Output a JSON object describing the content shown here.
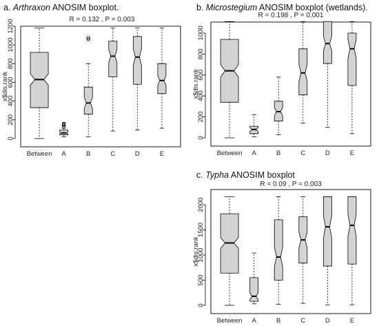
{
  "chart_data": [
    {
      "type": "boxplot",
      "panel_label": "a.",
      "title_italic": "Arthraxon",
      "title_rest": " ANOSIM boxplot.",
      "stat_text": "R = 0.132 ,  P = 0.003",
      "ylabel": "x$dis.rank",
      "ylim": [
        0,
        1240
      ],
      "yticks": [
        0,
        200,
        400,
        600,
        800,
        1000,
        1200
      ],
      "categories": [
        "Between",
        "A",
        "B",
        "C",
        "D",
        "E"
      ],
      "boxes": [
        {
          "name": "Between",
          "min": 0,
          "q1": 330,
          "med": 630,
          "q3": 920,
          "max": 1180,
          "notch": [
            570,
            690
          ],
          "outliers": [],
          "wide": true
        },
        {
          "name": "A",
          "min": 20,
          "q1": 40,
          "med": 60,
          "q3": 90,
          "max": 110,
          "notch": [
            50,
            70
          ],
          "outliers": [
            130,
            145,
            150,
            160
          ]
        },
        {
          "name": "B",
          "min": 20,
          "q1": 260,
          "med": 380,
          "q3": 550,
          "max": 800,
          "notch": [
            320,
            440
          ],
          "outliers": [
            1060,
            1075
          ]
        },
        {
          "name": "C",
          "min": 80,
          "q1": 660,
          "med": 880,
          "q3": 1040,
          "max": 1180,
          "notch": [
            810,
            950
          ]
        },
        {
          "name": "D",
          "min": 90,
          "q1": 580,
          "med": 870,
          "q3": 1090,
          "max": 1180,
          "notch": [
            780,
            960
          ]
        },
        {
          "name": "E",
          "min": 110,
          "q1": 480,
          "med": 620,
          "q3": 800,
          "max": 1180,
          "notch": [
            570,
            670
          ]
        }
      ]
    },
    {
      "type": "boxplot",
      "panel_label": "b.",
      "title_italic": "Microstegium",
      "title_rest": " ANOSIM boxplot (wetlands).",
      "stat_text": "R = 0.198 ,  P = 0.001",
      "ylabel": "x$dis.rank",
      "ylim": [
        0,
        1110
      ],
      "yticks": [
        0,
        200,
        400,
        600,
        800,
        1000
      ],
      "categories": [
        "Between",
        "A",
        "B",
        "C",
        "D",
        "E"
      ],
      "boxes": [
        {
          "name": "Between",
          "min": 0,
          "q1": 340,
          "med": 640,
          "q3": 940,
          "max": 1110,
          "notch": [
            580,
            700
          ],
          "wide": true
        },
        {
          "name": "A",
          "min": 10,
          "q1": 40,
          "med": 80,
          "q3": 110,
          "max": 220,
          "notch": [
            60,
            100
          ]
        },
        {
          "name": "B",
          "min": 30,
          "q1": 160,
          "med": 250,
          "q3": 350,
          "max": 580,
          "notch": [
            210,
            290
          ]
        },
        {
          "name": "C",
          "min": 140,
          "q1": 410,
          "med": 620,
          "q3": 850,
          "max": 1110,
          "notch": [
            540,
            700
          ]
        },
        {
          "name": "D",
          "min": 100,
          "q1": 710,
          "med": 900,
          "q3": 1110,
          "max": 1110,
          "notch": [
            830,
            970
          ]
        },
        {
          "name": "E",
          "min": 40,
          "q1": 500,
          "med": 850,
          "q3": 1000,
          "max": 1110,
          "notch": [
            760,
            940
          ]
        }
      ]
    },
    {
      "type": "boxplot",
      "panel_label": "c.",
      "title_italic": "Typha",
      "title_rest": " ANOSIM boxplot",
      "stat_text": "R = 0.09 ,  P = 0.003",
      "ylabel": "x$dis.rank",
      "ylim": [
        0,
        2200
      ],
      "yticks": [
        0,
        500,
        1000,
        1500,
        2000
      ],
      "categories": [
        "Between",
        "A",
        "B",
        "C",
        "D",
        "E"
      ],
      "boxes": [
        {
          "name": "Between",
          "min": 0,
          "q1": 640,
          "med": 1240,
          "q3": 1820,
          "max": 2160,
          "notch": [
            1130,
            1350
          ],
          "wide": true
        },
        {
          "name": "A",
          "min": 30,
          "q1": 80,
          "med": 180,
          "q3": 550,
          "max": 1040,
          "notch": [
            110,
            250
          ]
        },
        {
          "name": "B",
          "min": 20,
          "q1": 500,
          "med": 960,
          "q3": 1700,
          "max": 2160,
          "notch": [
            760,
            1160
          ]
        },
        {
          "name": "C",
          "min": 40,
          "q1": 840,
          "med": 1300,
          "q3": 1760,
          "max": 2160,
          "notch": [
            1140,
            1460
          ]
        },
        {
          "name": "D",
          "min": 10,
          "q1": 780,
          "med": 1560,
          "q3": 2160,
          "max": 2160,
          "notch": [
            1340,
            1780
          ]
        },
        {
          "name": "E",
          "min": 10,
          "q1": 820,
          "med": 1590,
          "q3": 2160,
          "max": 2160,
          "notch": [
            1370,
            1810
          ]
        }
      ]
    }
  ]
}
